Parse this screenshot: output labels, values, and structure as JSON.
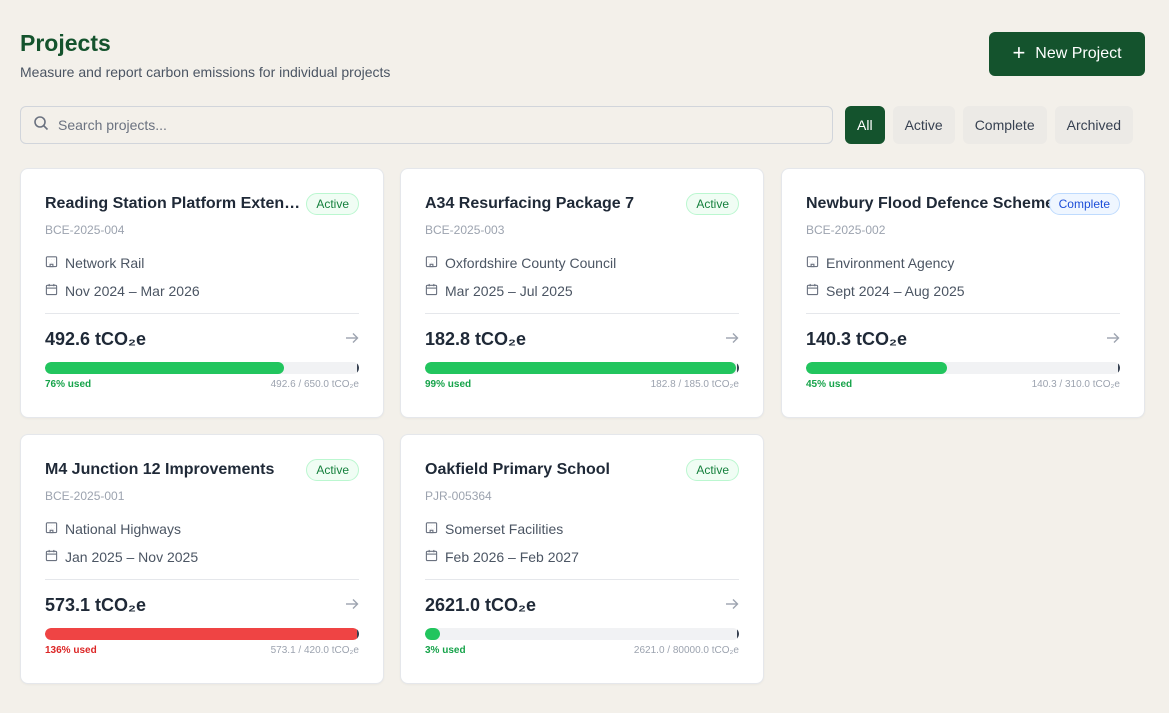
{
  "header": {
    "title": "Projects",
    "subtitle": "Measure and report carbon emissions for individual projects",
    "new_button_label": "New Project"
  },
  "search": {
    "placeholder": "Search projects..."
  },
  "filters": [
    {
      "label": "All",
      "selected": true
    },
    {
      "label": "Active",
      "selected": false
    },
    {
      "label": "Complete",
      "selected": false
    },
    {
      "label": "Archived",
      "selected": false
    }
  ],
  "projects": [
    {
      "title": "Reading Station Platform Extension",
      "status": "Active",
      "code": "BCE-2025-004",
      "org": "Network Rail",
      "dates": "Nov 2024 – Mar 2026",
      "emissions": "492.6 tCO₂e",
      "used_pct": 76,
      "used_label": "76% used",
      "ratio": "492.6 / 650.0 tCO₂e",
      "over_budget": false
    },
    {
      "title": "A34 Resurfacing Package 7",
      "status": "Active",
      "code": "BCE-2025-003",
      "org": "Oxfordshire County Council",
      "dates": "Mar 2025 – Jul 2025",
      "emissions": "182.8 tCO₂e",
      "used_pct": 99,
      "used_label": "99% used",
      "ratio": "182.8 / 185.0 tCO₂e",
      "over_budget": false
    },
    {
      "title": "Newbury Flood Defence Scheme",
      "status": "Complete",
      "code": "BCE-2025-002",
      "org": "Environment Agency",
      "dates": "Sept 2024 – Aug 2025",
      "emissions": "140.3 tCO₂e",
      "used_pct": 45,
      "used_label": "45% used",
      "ratio": "140.3 / 310.0 tCO₂e",
      "over_budget": false
    },
    {
      "title": "M4 Junction 12 Improvements",
      "status": "Active",
      "code": "BCE-2025-001",
      "org": "National Highways",
      "dates": "Jan 2025 – Nov 2025",
      "emissions": "573.1 tCO₂e",
      "used_pct": 136,
      "used_label": "136% used",
      "ratio": "573.1 / 420.0 tCO₂e",
      "over_budget": true
    },
    {
      "title": "Oakfield Primary School",
      "status": "Active",
      "code": "PJR-005364",
      "org": "Somerset Facilities",
      "dates": "Feb 2026 – Feb 2027",
      "emissions": "2621.0 tCO₂e",
      "used_pct": 3,
      "used_label": "3% used",
      "ratio": "2621.0 / 80000.0 tCO₂e",
      "over_budget": false
    }
  ],
  "colors": {
    "brand": "#14532d",
    "progress_ok": "#22c55e",
    "progress_over": "#ef4444",
    "background": "#f3f0ea"
  }
}
